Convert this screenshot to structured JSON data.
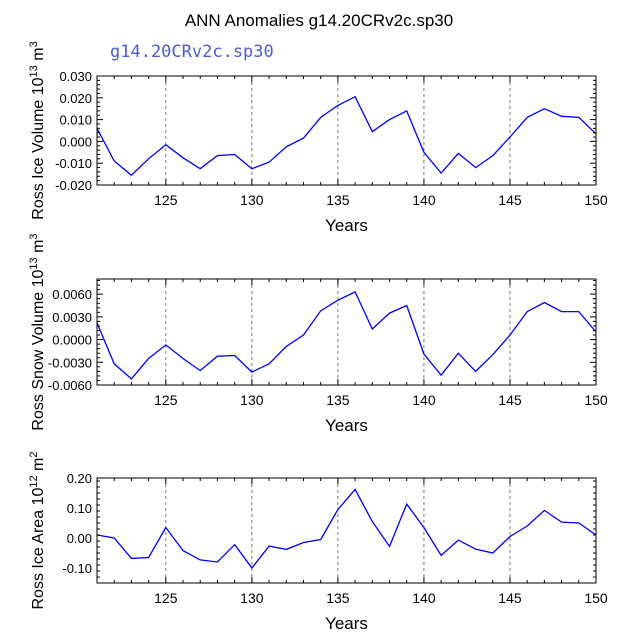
{
  "title": "ANN Anomalies g14.20CRv2c.sp30",
  "series_label": "g14.20CRv2c.sp30",
  "colors": {
    "line": "#0000ff",
    "series_label": "#4b5bd6",
    "grid": "#555555"
  },
  "chart_data": [
    {
      "type": "line",
      "ylabel": {
        "main": "Ross Ice Volume 10",
        "exp": "13",
        "unit": " m",
        "unit_exp": "3"
      },
      "xlabel": "Years",
      "xlim": [
        121,
        150
      ],
      "ylim": [
        -0.02,
        0.03
      ],
      "xticks": [
        125,
        130,
        135,
        140,
        145,
        150
      ],
      "xtick_labels": [
        "125",
        "130",
        "135",
        "140",
        "145",
        "150"
      ],
      "yticks": [
        0.03,
        0.02,
        0.01,
        0.0,
        -0.01,
        -0.02
      ],
      "ytick_labels": [
        "0.030",
        "0.020",
        "0.010",
        "0.000",
        "-0.010",
        "-0.020"
      ],
      "x": [
        121,
        122,
        123,
        124,
        125,
        126,
        127,
        128,
        129,
        130,
        131,
        132,
        133,
        134,
        135,
        136,
        137,
        138,
        139,
        140,
        141,
        142,
        143,
        144,
        145,
        146,
        147,
        148,
        149,
        150
      ],
      "values": [
        0.006,
        -0.009,
        -0.0155,
        -0.008,
        -0.0015,
        -0.0075,
        -0.0125,
        -0.0065,
        -0.006,
        -0.0125,
        -0.0095,
        -0.0025,
        0.0015,
        0.011,
        0.0165,
        0.0205,
        0.0045,
        0.01,
        0.014,
        -0.005,
        -0.0145,
        -0.0055,
        -0.012,
        -0.0065,
        0.002,
        0.011,
        0.015,
        0.0115,
        0.011,
        0.0035
      ]
    },
    {
      "type": "line",
      "ylabel": {
        "main": "Ross Snow Volume 10",
        "exp": "13",
        "unit": " m",
        "unit_exp": "3"
      },
      "xlabel": "Years",
      "xlim": [
        121,
        150
      ],
      "ylim": [
        -0.006,
        0.008
      ],
      "xticks": [
        125,
        130,
        135,
        140,
        145,
        150
      ],
      "xtick_labels": [
        "125",
        "130",
        "135",
        "140",
        "145",
        "150"
      ],
      "yticks": [
        0.006,
        0.003,
        0.0,
        -0.003,
        -0.006
      ],
      "ytick_labels": [
        "0.0060",
        "0.0030",
        "0.0000",
        "-0.0030",
        "-0.0060"
      ],
      "x": [
        121,
        122,
        123,
        124,
        125,
        126,
        127,
        128,
        129,
        130,
        131,
        132,
        133,
        134,
        135,
        136,
        137,
        138,
        139,
        140,
        141,
        142,
        143,
        144,
        145,
        146,
        147,
        148,
        149,
        150
      ],
      "values": [
        0.0022,
        -0.0032,
        -0.0052,
        -0.0025,
        -0.0007,
        -0.0025,
        -0.0041,
        -0.0022,
        -0.0021,
        -0.0043,
        -0.0032,
        -0.0009,
        0.0006,
        0.0038,
        0.0052,
        0.0063,
        0.0014,
        0.0035,
        0.0045,
        -0.0019,
        -0.0047,
        -0.0018,
        -0.0042,
        -0.002,
        0.0006,
        0.0037,
        0.0049,
        0.0037,
        0.0037,
        0.001
      ]
    },
    {
      "type": "line",
      "ylabel": {
        "main": "Ross Ice Area 10",
        "exp": "12",
        "unit": " m",
        "unit_exp": "2"
      },
      "xlabel": "Years",
      "xlim": [
        121,
        150
      ],
      "ylim": [
        -0.15,
        0.2
      ],
      "xticks": [
        125,
        130,
        135,
        140,
        145,
        150
      ],
      "xtick_labels": [
        "125",
        "130",
        "135",
        "140",
        "145",
        "150"
      ],
      "yticks": [
        0.2,
        0.1,
        0.0,
        -0.1
      ],
      "ytick_labels": [
        "0.20",
        "0.10",
        "0.00",
        "-0.10"
      ],
      "x": [
        121,
        122,
        123,
        124,
        125,
        126,
        127,
        128,
        129,
        130,
        131,
        132,
        133,
        134,
        135,
        136,
        137,
        138,
        139,
        140,
        141,
        142,
        143,
        144,
        145,
        146,
        147,
        148,
        149,
        150
      ],
      "values": [
        0.01,
        0.0,
        -0.068,
        -0.065,
        0.035,
        -0.042,
        -0.073,
        -0.08,
        -0.022,
        -0.1,
        -0.027,
        -0.038,
        -0.015,
        -0.005,
        0.095,
        0.162,
        0.055,
        -0.028,
        0.113,
        0.035,
        -0.058,
        -0.007,
        -0.037,
        -0.05,
        0.005,
        0.04,
        0.092,
        0.053,
        0.05,
        0.01
      ]
    }
  ]
}
